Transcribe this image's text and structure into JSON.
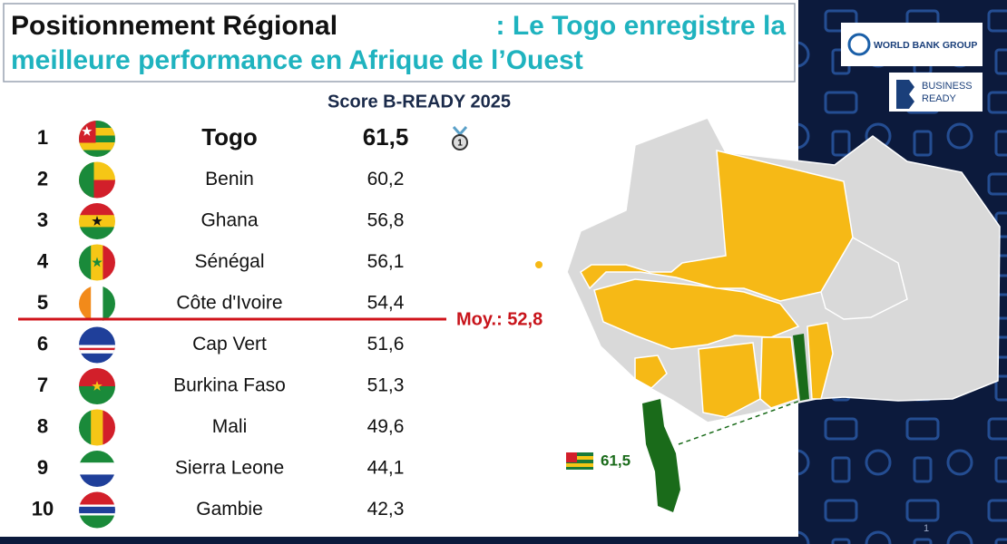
{
  "header": {
    "title_lead": "Positionnement Régional",
    "title_highlight_1": ": Le Togo enregistre la",
    "title_highlight_2": "meilleure performance en Afrique de l’Ouest"
  },
  "logos": {
    "world_bank": "WORLD BANK GROUP",
    "business_ready_1": "BUSINESS",
    "business_ready_2": "READY"
  },
  "table": {
    "title": "Score B-READY 2025",
    "rows": [
      [
        "1",
        "Togo",
        "61,5"
      ],
      [
        "2",
        "Benin",
        "60,2"
      ],
      [
        "3",
        "Ghana",
        "56,8"
      ],
      [
        "4",
        "Sénégal",
        "56,1"
      ],
      [
        "5",
        "Côte d'Ivoire",
        "54,4"
      ],
      [
        "6",
        "Cap Vert",
        "51,6"
      ],
      [
        "7",
        "Burkina Faso",
        "51,3"
      ],
      [
        "8",
        "Mali",
        "49,6"
      ],
      [
        "9",
        "Sierra Leone",
        "44,1"
      ],
      [
        "10",
        "Gambie",
        "42,3"
      ]
    ]
  },
  "medal": "1",
  "average": "Moy.: 52,8",
  "map": {
    "label": "61,5"
  },
  "page_number": "1"
}
